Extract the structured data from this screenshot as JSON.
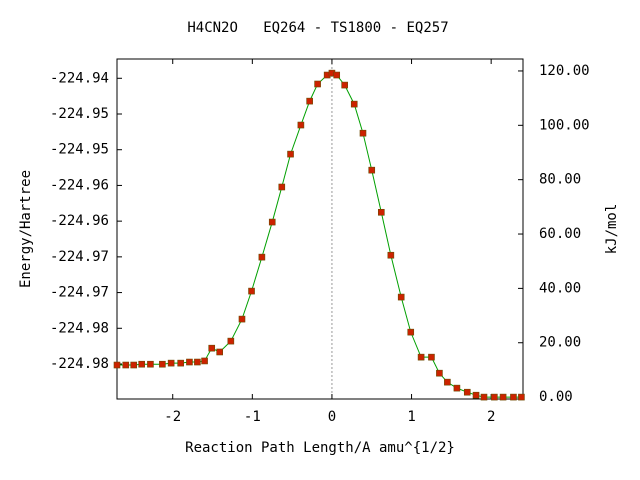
{
  "chart_data": {
    "type": "line",
    "title": "H4CN2O   EQ264 - TS1800 - EQ257",
    "x_label": "Reaction Path Length/A amu^{1/2}",
    "y_label": "Energy/Hartree",
    "y2_label": "kJ/mol",
    "xlim": [
      -2.7,
      2.4
    ],
    "xticks": [
      -2,
      -1,
      0,
      1,
      2
    ],
    "ylim": [
      -224.9849,
      -224.9373
    ],
    "yticks": [
      {
        "value": -224.98,
        "label": "-224.98"
      },
      {
        "value": -224.975,
        "label": "-224.98"
      },
      {
        "value": -224.97,
        "label": "-224.97"
      },
      {
        "value": -224.965,
        "label": "-224.97"
      },
      {
        "value": -224.96,
        "label": "-224.96"
      },
      {
        "value": -224.955,
        "label": "-224.96"
      },
      {
        "value": -224.95,
        "label": "-224.95"
      },
      {
        "value": -224.945,
        "label": "-224.95"
      },
      {
        "value": -224.94,
        "label": "-224.94"
      }
    ],
    "y2lim": [
      -0.7,
      124.4
    ],
    "y2ticks": [
      {
        "value": 0,
        "label": "0.00"
      },
      {
        "value": 20,
        "label": "20.00"
      },
      {
        "value": 40,
        "label": "40.00"
      },
      {
        "value": 60,
        "label": "60.00"
      },
      {
        "value": 80,
        "label": "80.00"
      },
      {
        "value": 100,
        "label": "100.00"
      },
      {
        "value": 120,
        "label": "120.00"
      }
    ],
    "x": [
      -2.7,
      -2.59,
      -2.49,
      -2.39,
      -2.28,
      -2.13,
      -2.02,
      -1.9,
      -1.79,
      -1.69,
      -1.6,
      -1.51,
      -1.41,
      -1.27,
      -1.13,
      -1.01,
      -0.88,
      -0.75,
      -0.63,
      -0.52,
      -0.39,
      -0.28,
      -0.18,
      -0.06,
      0.0,
      0.06,
      0.16,
      0.28,
      0.39,
      0.5,
      0.62,
      0.74,
      0.87,
      0.99,
      1.12,
      1.25,
      1.35,
      1.45,
      1.57,
      1.7,
      1.81,
      1.91,
      2.04,
      2.15,
      2.28,
      2.38
    ],
    "series": [
      {
        "axis": "y2",
        "color": "#00a000",
        "marker_color": "#cc2200",
        "values": [
          11.8,
          11.8,
          11.8,
          12.1,
          12.1,
          12.1,
          12.5,
          12.5,
          12.9,
          12.9,
          13.3,
          18.0,
          16.6,
          20.6,
          28.7,
          39.0,
          51.5,
          64.4,
          77.3,
          89.4,
          100.1,
          108.9,
          115.2,
          118.5,
          119.2,
          118.5,
          114.8,
          107.8,
          97.1,
          83.5,
          68.0,
          52.2,
          36.8,
          23.9,
          14.7,
          14.7,
          8.8,
          5.5,
          3.3,
          1.8,
          0.7,
          0,
          0,
          0,
          0,
          0
        ]
      }
    ]
  }
}
